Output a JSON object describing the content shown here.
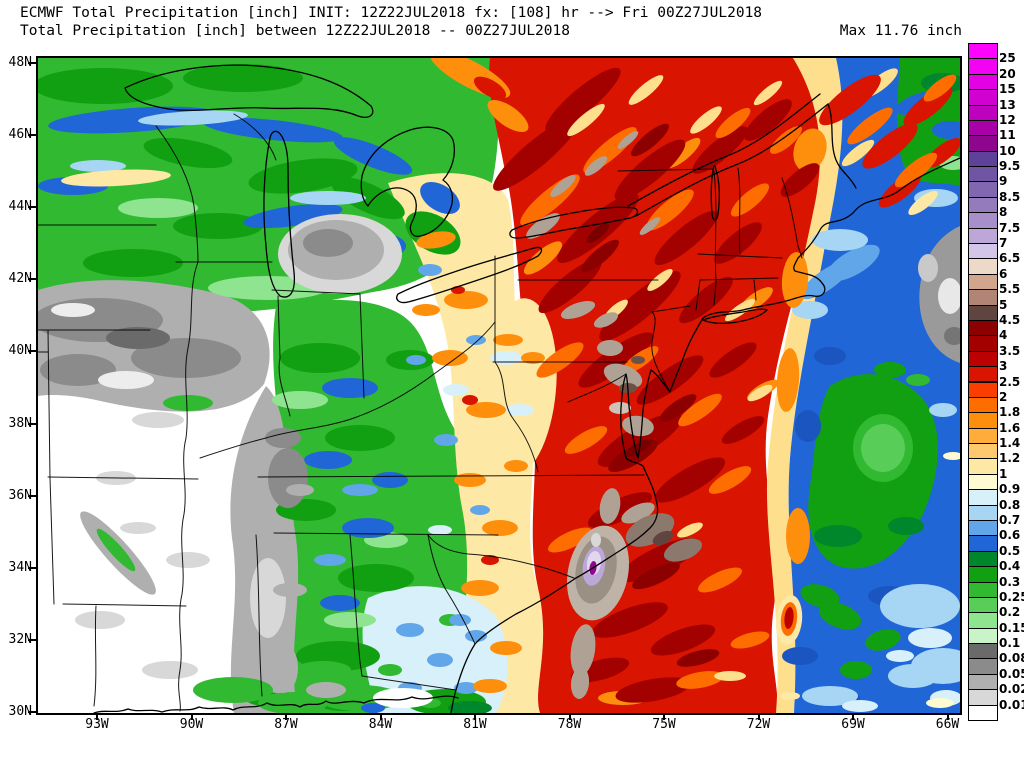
{
  "header": {
    "title_line1": "ECMWF Total Precipitation [inch] INIT: 12Z22JUL2018 fx: [108] hr --> Fri 00Z27JUL2018",
    "title_line2": "Total Precipitation [inch] between 12Z22JUL2018 -- 00Z27JUL2018",
    "max_label": "Max 11.76 inch"
  },
  "axes": {
    "lat_labels": [
      "48N",
      "46N",
      "44N",
      "42N",
      "40N",
      "38N",
      "36N",
      "34N",
      "32N",
      "30N"
    ],
    "lon_labels": [
      "93W",
      "90W",
      "87W",
      "84W",
      "81W",
      "78W",
      "75W",
      "72W",
      "69W",
      "66W"
    ]
  },
  "legend": {
    "cells": [
      {
        "color": "#FE04FE",
        "label": "25"
      },
      {
        "color": "#F303F3",
        "label": "20"
      },
      {
        "color": "#E402E4",
        "label": "15"
      },
      {
        "color": "#D102D1",
        "label": "13"
      },
      {
        "color": "#BD01BD",
        "label": "12"
      },
      {
        "color": "#A801A8",
        "label": "11"
      },
      {
        "color": "#8D068D",
        "label": "10"
      },
      {
        "color": "#5E4198",
        "label": "9.5"
      },
      {
        "color": "#7055A5",
        "label": "9"
      },
      {
        "color": "#8166B0",
        "label": "8.5"
      },
      {
        "color": "#937BBC",
        "label": "8"
      },
      {
        "color": "#A78FC9",
        "label": "7.5"
      },
      {
        "color": "#BCA7D8",
        "label": "7"
      },
      {
        "color": "#D3C5E7",
        "label": "6.5"
      },
      {
        "color": "#EDD9C8",
        "label": "6"
      },
      {
        "color": "#D2A58E",
        "label": "5.5"
      },
      {
        "color": "#B28476",
        "label": "5"
      },
      {
        "color": "#5F4440",
        "label": "4.5"
      },
      {
        "color": "#8C0000",
        "label": "4"
      },
      {
        "color": "#A30000",
        "label": "3.5"
      },
      {
        "color": "#BB0101",
        "label": "3"
      },
      {
        "color": "#D91400",
        "label": "2.5"
      },
      {
        "color": "#F93E00",
        "label": "2"
      },
      {
        "color": "#FE6D00",
        "label": "1.8"
      },
      {
        "color": "#FE8F0D",
        "label": "1.6"
      },
      {
        "color": "#FEAD3B",
        "label": "1.4"
      },
      {
        "color": "#FEC96E",
        "label": "1.2"
      },
      {
        "color": "#FEE8A5",
        "label": "1"
      },
      {
        "color": "#FEFAD1",
        "label": "0.9"
      },
      {
        "color": "#D8F0FA",
        "label": "0.8"
      },
      {
        "color": "#A6D6F3",
        "label": "0.7"
      },
      {
        "color": "#61A6E8",
        "label": "0.6"
      },
      {
        "color": "#2166D6",
        "label": "0.5"
      },
      {
        "color": "#00872B",
        "label": "0.4"
      },
      {
        "color": "#11A011",
        "label": "0.3"
      },
      {
        "color": "#31B931",
        "label": "0.25"
      },
      {
        "color": "#58CE58",
        "label": "0.2"
      },
      {
        "color": "#8FE48F",
        "label": "0.15"
      },
      {
        "color": "#C9F3C9",
        "label": "0.1"
      },
      {
        "color": "#6A6A6A",
        "label": "0.08"
      },
      {
        "color": "#8B8B8B",
        "label": "0.05"
      },
      {
        "color": "#AFAFAF",
        "label": "0.02"
      },
      {
        "color": "#D8D8D8",
        "label": "0.01"
      },
      {
        "color": "#FFFFFF",
        "label": ""
      }
    ]
  },
  "chart_data": {
    "type": "heatmap",
    "subtype": "filled-contour precipitation map",
    "model": "ECMWF",
    "variable": "Total Precipitation",
    "units": "inch",
    "init": "12Z22JUL2018",
    "forecast_hour": 108,
    "valid": "Fri 00Z27JUL2018",
    "accumulation_period": "12Z22JUL2018 -- 00Z27JUL2018",
    "max_value_inch": 11.76,
    "lat_range": [
      "30N",
      "48N"
    ],
    "lon_range": [
      "93W",
      "66W"
    ],
    "scale_levels_inch": [
      0.01,
      0.02,
      0.05,
      0.08,
      0.1,
      0.15,
      0.2,
      0.25,
      0.3,
      0.4,
      0.5,
      0.6,
      0.7,
      0.8,
      0.9,
      1,
      1.2,
      1.4,
      1.6,
      1.8,
      2,
      2.5,
      3,
      3.5,
      4,
      4.5,
      5,
      5.5,
      6,
      6.5,
      7,
      7.5,
      8,
      8.5,
      9,
      9.5,
      10,
      11,
      12,
      13,
      15,
      20,
      25
    ],
    "features": [
      "Broad 2-6+ inch (dark red) precipitation swath from the Carolinas/Mid-Atlantic coast northeast through New York and New England",
      "Embedded maximum of 11.76 inch (purple/lavender core inside gray shading) just off the coastal Carolinas",
      "Gray/brown 4.5-6 inch cores over the Chesapeake Bay region and offshore North Carolina",
      "0.1-0.5 inch greens and blues over the upper Midwest, Great Lakes and Ohio Valley fringe",
      "Speckled 0.6-1.6 inch yellow/orange band over the Ohio Valley, West Virginia and the Piedmont",
      "Less than 0.1 inch (white with gray patches) over the Plains and lower Mississippi Valley",
      "0.25-1 inch green/blue area over the Gulf of Maine and western Atlantic",
      "Isolated 3-4 inch red streak in the Atlantic south of New England",
      "Gray sub-0.1 inch area near Nova Scotia at the far right edge"
    ]
  }
}
